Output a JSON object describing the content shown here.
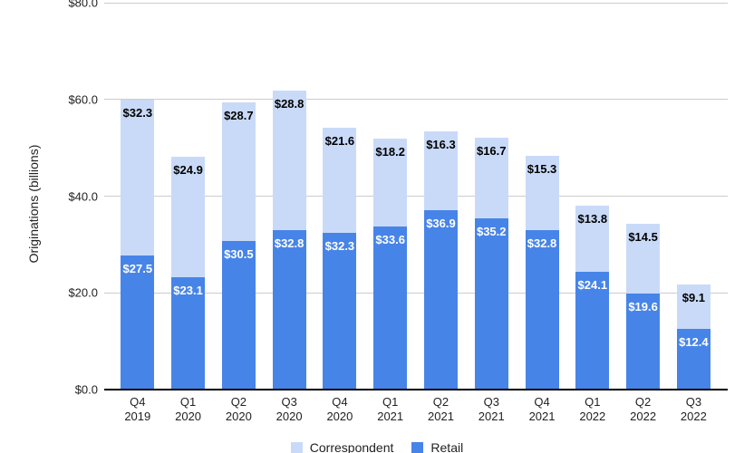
{
  "chart_data": {
    "type": "bar",
    "stacked": true,
    "title": "",
    "xlabel": "",
    "ylabel": "Originations (billions)",
    "ylim": [
      0,
      80
    ],
    "grid": true,
    "legend_position": "bottom",
    "value_prefix": "$",
    "grid_color": "#cccccc",
    "axis_line_color": "#000000",
    "tick_text_color": "#222222",
    "y_ticks": [
      {
        "value": 80,
        "label": "$80.0"
      },
      {
        "value": 60,
        "label": "$60.0"
      },
      {
        "value": 40,
        "label": "$40.0"
      },
      {
        "value": 20,
        "label": "$20.0"
      },
      {
        "value": 0,
        "label": "$0.0"
      }
    ],
    "categories": [
      {
        "quarter": "Q4",
        "year": "2019"
      },
      {
        "quarter": "Q1",
        "year": "2020"
      },
      {
        "quarter": "Q2",
        "year": "2020"
      },
      {
        "quarter": "Q3",
        "year": "2020"
      },
      {
        "quarter": "Q4",
        "year": "2020"
      },
      {
        "quarter": "Q1",
        "year": "2021"
      },
      {
        "quarter": "Q2",
        "year": "2021"
      },
      {
        "quarter": "Q3",
        "year": "2021"
      },
      {
        "quarter": "Q4",
        "year": "2021"
      },
      {
        "quarter": "Q1",
        "year": "2022"
      },
      {
        "quarter": "Q2",
        "year": "2022"
      },
      {
        "quarter": "Q3",
        "year": "2022"
      }
    ],
    "series": [
      {
        "name": "Correspondent",
        "stack_order": "top",
        "color": "#c9daf8",
        "label_color": "#000000",
        "values": [
          32.3,
          24.9,
          28.7,
          28.8,
          21.6,
          18.2,
          16.3,
          16.7,
          15.3,
          13.8,
          14.5,
          9.1
        ]
      },
      {
        "name": "Retail",
        "stack_order": "bottom",
        "color": "#4784e8",
        "label_color": "#ffffff",
        "values": [
          27.5,
          23.1,
          30.5,
          32.8,
          32.3,
          33.6,
          36.9,
          35.2,
          32.8,
          24.1,
          19.6,
          12.4
        ]
      }
    ]
  }
}
